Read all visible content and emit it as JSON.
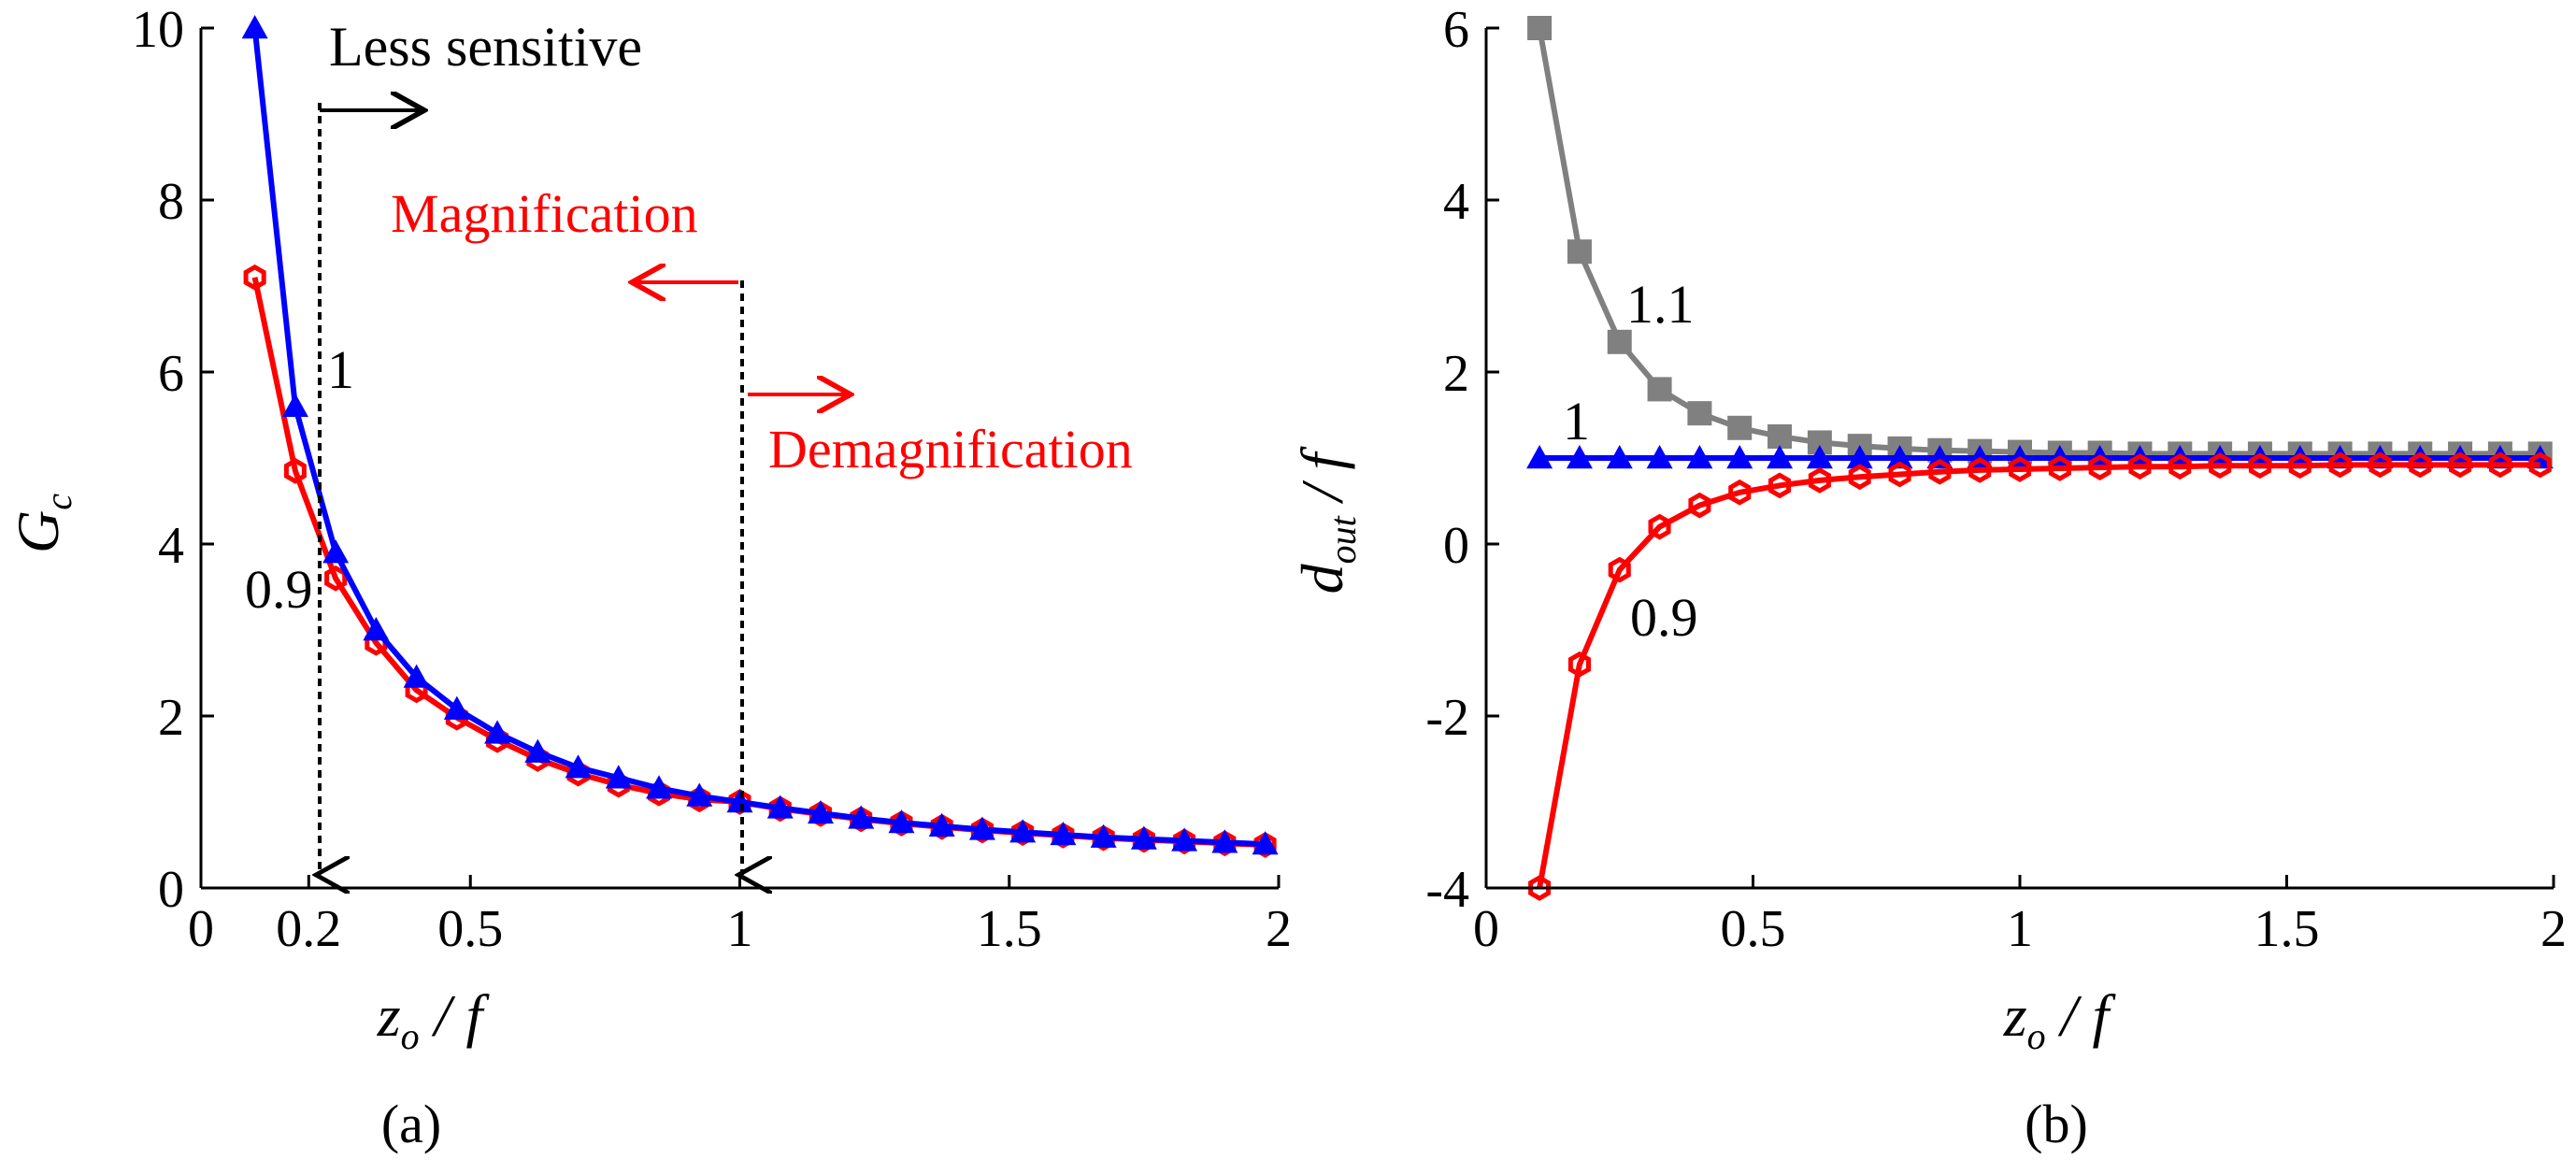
{
  "chart_data": [
    {
      "type": "line",
      "panel_label": "(a)",
      "xlim": [
        0,
        2
      ],
      "ylim": [
        0,
        10
      ],
      "xticks": [
        {
          "value": 0,
          "label": "0"
        },
        {
          "value": 0.2,
          "label": "0.2"
        },
        {
          "value": 0.5,
          "label": "0.5"
        },
        {
          "value": 1,
          "label": "1"
        },
        {
          "value": 1.5,
          "label": "1.5"
        },
        {
          "value": 2,
          "label": "2"
        }
      ],
      "yticks": [
        {
          "value": 0,
          "label": "0"
        },
        {
          "value": 2,
          "label": "2"
        },
        {
          "value": 4,
          "label": "4"
        },
        {
          "value": 6,
          "label": "6"
        },
        {
          "value": 8,
          "label": "8"
        },
        {
          "value": 10,
          "label": "10"
        }
      ],
      "xlabel": {
        "main": "z",
        "sub": "o",
        "rest": " / f"
      },
      "ylabel": {
        "main": "G",
        "sub": "c"
      },
      "series": [
        {
          "name": "0.9",
          "color": "#ff0000",
          "marker": "hexagon",
          "x": [
            0.1,
            0.175,
            0.25,
            0.325,
            0.4,
            0.475,
            0.55,
            0.625,
            0.7,
            0.775,
            0.85,
            0.925,
            1.0,
            1.075,
            1.15,
            1.225,
            1.3,
            1.375,
            1.45,
            1.525,
            1.6,
            1.675,
            1.75,
            1.825,
            1.9,
            1.975
          ],
          "y": [
            7.1,
            4.85,
            3.6,
            2.85,
            2.3,
            1.98,
            1.72,
            1.5,
            1.33,
            1.2,
            1.1,
            1.03,
            1.0,
            0.92,
            0.86,
            0.8,
            0.75,
            0.71,
            0.67,
            0.64,
            0.61,
            0.58,
            0.56,
            0.54,
            0.52,
            0.5
          ]
        },
        {
          "name": "1",
          "color": "#0000ff",
          "marker": "triangle",
          "x": [
            0.1,
            0.175,
            0.25,
            0.325,
            0.4,
            0.475,
            0.55,
            0.625,
            0.7,
            0.775,
            0.85,
            0.925,
            1.0,
            1.075,
            1.15,
            1.225,
            1.3,
            1.375,
            1.45,
            1.525,
            1.6,
            1.675,
            1.75,
            1.825,
            1.9,
            1.975
          ],
          "y": [
            10,
            5.6,
            3.9,
            3.0,
            2.45,
            2.08,
            1.8,
            1.58,
            1.4,
            1.28,
            1.16,
            1.07,
            1.0,
            0.93,
            0.87,
            0.81,
            0.76,
            0.72,
            0.68,
            0.65,
            0.62,
            0.59,
            0.57,
            0.55,
            0.53,
            0.51
          ]
        }
      ],
      "annotations": {
        "less_sensitive": "Less sensitive",
        "magnification": "Magnification",
        "demagnification": "Demagnification",
        "series_label_1": "1",
        "series_label_09": "0.9"
      }
    },
    {
      "type": "line",
      "panel_label": "(b)",
      "xlim": [
        0,
        2
      ],
      "ylim": [
        -4,
        6
      ],
      "xticks": [
        {
          "value": 0,
          "label": "0"
        },
        {
          "value": 0.5,
          "label": "0.5"
        },
        {
          "value": 1,
          "label": "1"
        },
        {
          "value": 1.5,
          "label": "1.5"
        },
        {
          "value": 2,
          "label": "2"
        }
      ],
      "yticks": [
        {
          "value": -4,
          "label": "-4"
        },
        {
          "value": -2,
          "label": "-2"
        },
        {
          "value": 0,
          "label": "0"
        },
        {
          "value": 2,
          "label": "2"
        },
        {
          "value": 4,
          "label": "4"
        },
        {
          "value": 6,
          "label": "6"
        }
      ],
      "xlabel": {
        "main": "z",
        "sub": "o",
        "rest": " / f"
      },
      "ylabel": {
        "main": "d",
        "sub": "out",
        "rest": " / f"
      },
      "series": [
        {
          "name": "1.1",
          "color": "#808080",
          "marker": "square",
          "x": [
            0.1,
            0.175,
            0.25,
            0.325,
            0.4,
            0.475,
            0.55,
            0.625,
            0.7,
            0.775,
            0.85,
            0.925,
            1.0,
            1.075,
            1.15,
            1.225,
            1.3,
            1.375,
            1.45,
            1.525,
            1.6,
            1.675,
            1.75,
            1.825,
            1.9,
            1.975
          ],
          "y": [
            6.0,
            3.4,
            2.35,
            1.8,
            1.52,
            1.35,
            1.25,
            1.18,
            1.14,
            1.11,
            1.09,
            1.08,
            1.07,
            1.06,
            1.06,
            1.05,
            1.05,
            1.05,
            1.05,
            1.05,
            1.05,
            1.05,
            1.05,
            1.05,
            1.05,
            1.05
          ]
        },
        {
          "name": "1",
          "color": "#0000ff",
          "marker": "triangle",
          "x": [
            0.1,
            0.175,
            0.25,
            0.325,
            0.4,
            0.475,
            0.55,
            0.625,
            0.7,
            0.775,
            0.85,
            0.925,
            1.0,
            1.075,
            1.15,
            1.225,
            1.3,
            1.375,
            1.45,
            1.525,
            1.6,
            1.675,
            1.75,
            1.825,
            1.9,
            1.975
          ],
          "y": [
            1,
            1,
            1,
            1,
            1,
            1,
            1,
            1,
            1,
            1,
            1,
            1,
            1,
            1,
            1,
            1,
            1,
            1,
            1,
            1,
            1,
            1,
            1,
            1,
            1,
            1
          ]
        },
        {
          "name": "0.9",
          "color": "#ff0000",
          "marker": "hexagon",
          "x": [
            0.1,
            0.175,
            0.25,
            0.325,
            0.4,
            0.475,
            0.55,
            0.625,
            0.7,
            0.775,
            0.85,
            0.925,
            1.0,
            1.075,
            1.15,
            1.225,
            1.3,
            1.375,
            1.45,
            1.525,
            1.6,
            1.675,
            1.75,
            1.825,
            1.9,
            1.975
          ],
          "y": [
            -4.0,
            -1.4,
            -0.3,
            0.2,
            0.45,
            0.6,
            0.68,
            0.74,
            0.78,
            0.81,
            0.84,
            0.86,
            0.87,
            0.88,
            0.89,
            0.9,
            0.9,
            0.91,
            0.91,
            0.91,
            0.92,
            0.92,
            0.92,
            0.92,
            0.92,
            0.92
          ]
        }
      ],
      "annotations": {
        "label_11": "1.1",
        "label_1": "1",
        "label_09": "0.9"
      }
    }
  ]
}
